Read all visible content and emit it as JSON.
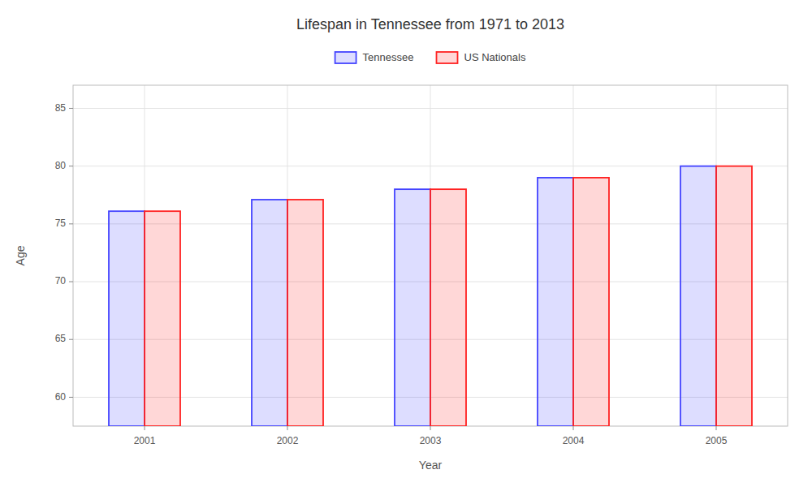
{
  "chart_data": {
    "type": "bar",
    "title": "Lifespan in Tennessee from 1971 to 2013",
    "x_label": "Year",
    "y_label": "Age",
    "categories": [
      "2001",
      "2002",
      "2003",
      "2004",
      "2005"
    ],
    "series": [
      {
        "name": "Tennessee",
        "color": "#4444ff",
        "values": [
          76.1,
          77.1,
          78.0,
          79.0,
          80.0
        ]
      },
      {
        "name": "US Nationals",
        "color": "#ff2222",
        "values": [
          76.1,
          77.1,
          78.0,
          79.0,
          80.0
        ]
      }
    ],
    "ylim": [
      57.5,
      87
    ],
    "yticks": [
      60,
      65,
      70,
      75,
      80,
      85
    ],
    "grid": true,
    "legend": "top"
  }
}
